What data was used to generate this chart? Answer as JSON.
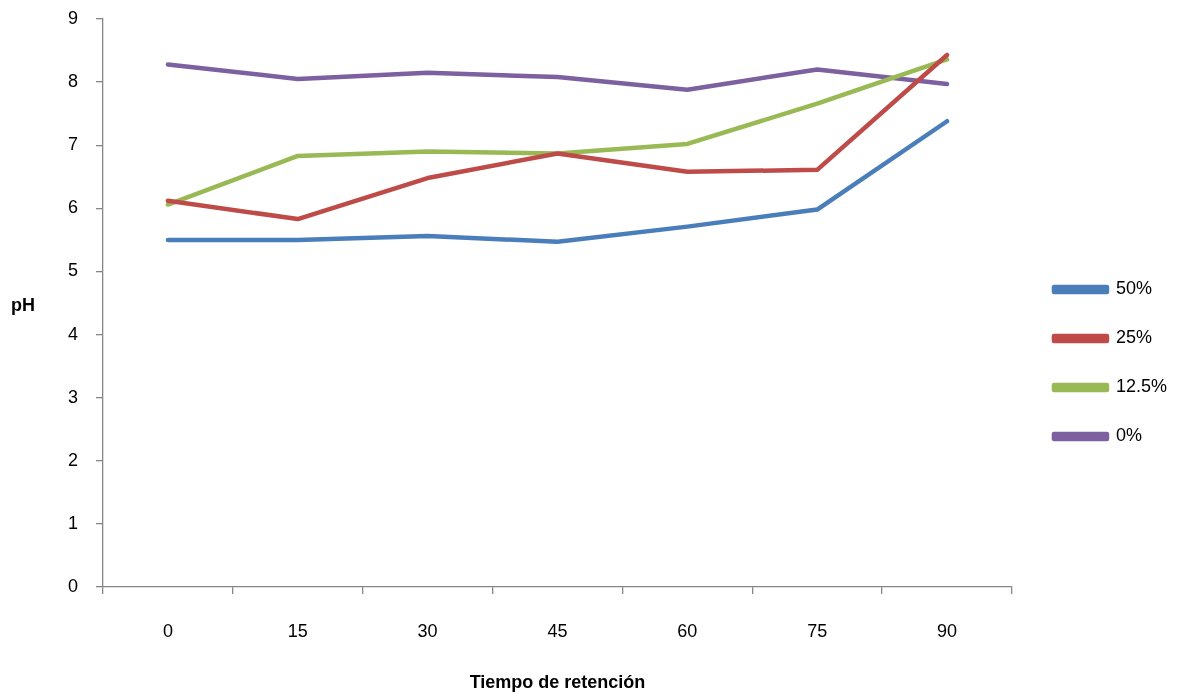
{
  "chart_data": {
    "type": "line",
    "xlabel": "Tiempo de retención",
    "ylabel": "pH",
    "categories": [
      "0",
      "15",
      "30",
      "45",
      "60",
      "75",
      "90"
    ],
    "ylim": [
      0,
      9
    ],
    "yticks": [
      0,
      1,
      2,
      3,
      4,
      5,
      6,
      7,
      8,
      9
    ],
    "grid": false,
    "legend": "right",
    "marker": "none",
    "line_style": "solid",
    "series": [
      {
        "name": "50%",
        "color": "#4a7ebb",
        "values": [
          5.5,
          5.5,
          5.56,
          5.47,
          5.71,
          5.98,
          7.38
        ]
      },
      {
        "name": "25%",
        "color": "#be4b48",
        "values": [
          6.12,
          5.83,
          6.48,
          6.87,
          6.58,
          6.61,
          8.43
        ]
      },
      {
        "name": "12.5%",
        "color": "#98b954",
        "values": [
          6.06,
          6.83,
          6.9,
          6.87,
          7.02,
          7.66,
          8.36
        ]
      },
      {
        "name": "0%",
        "color": "#7d60a0",
        "values": [
          8.28,
          8.05,
          8.15,
          8.08,
          7.88,
          8.2,
          7.97
        ]
      }
    ]
  }
}
